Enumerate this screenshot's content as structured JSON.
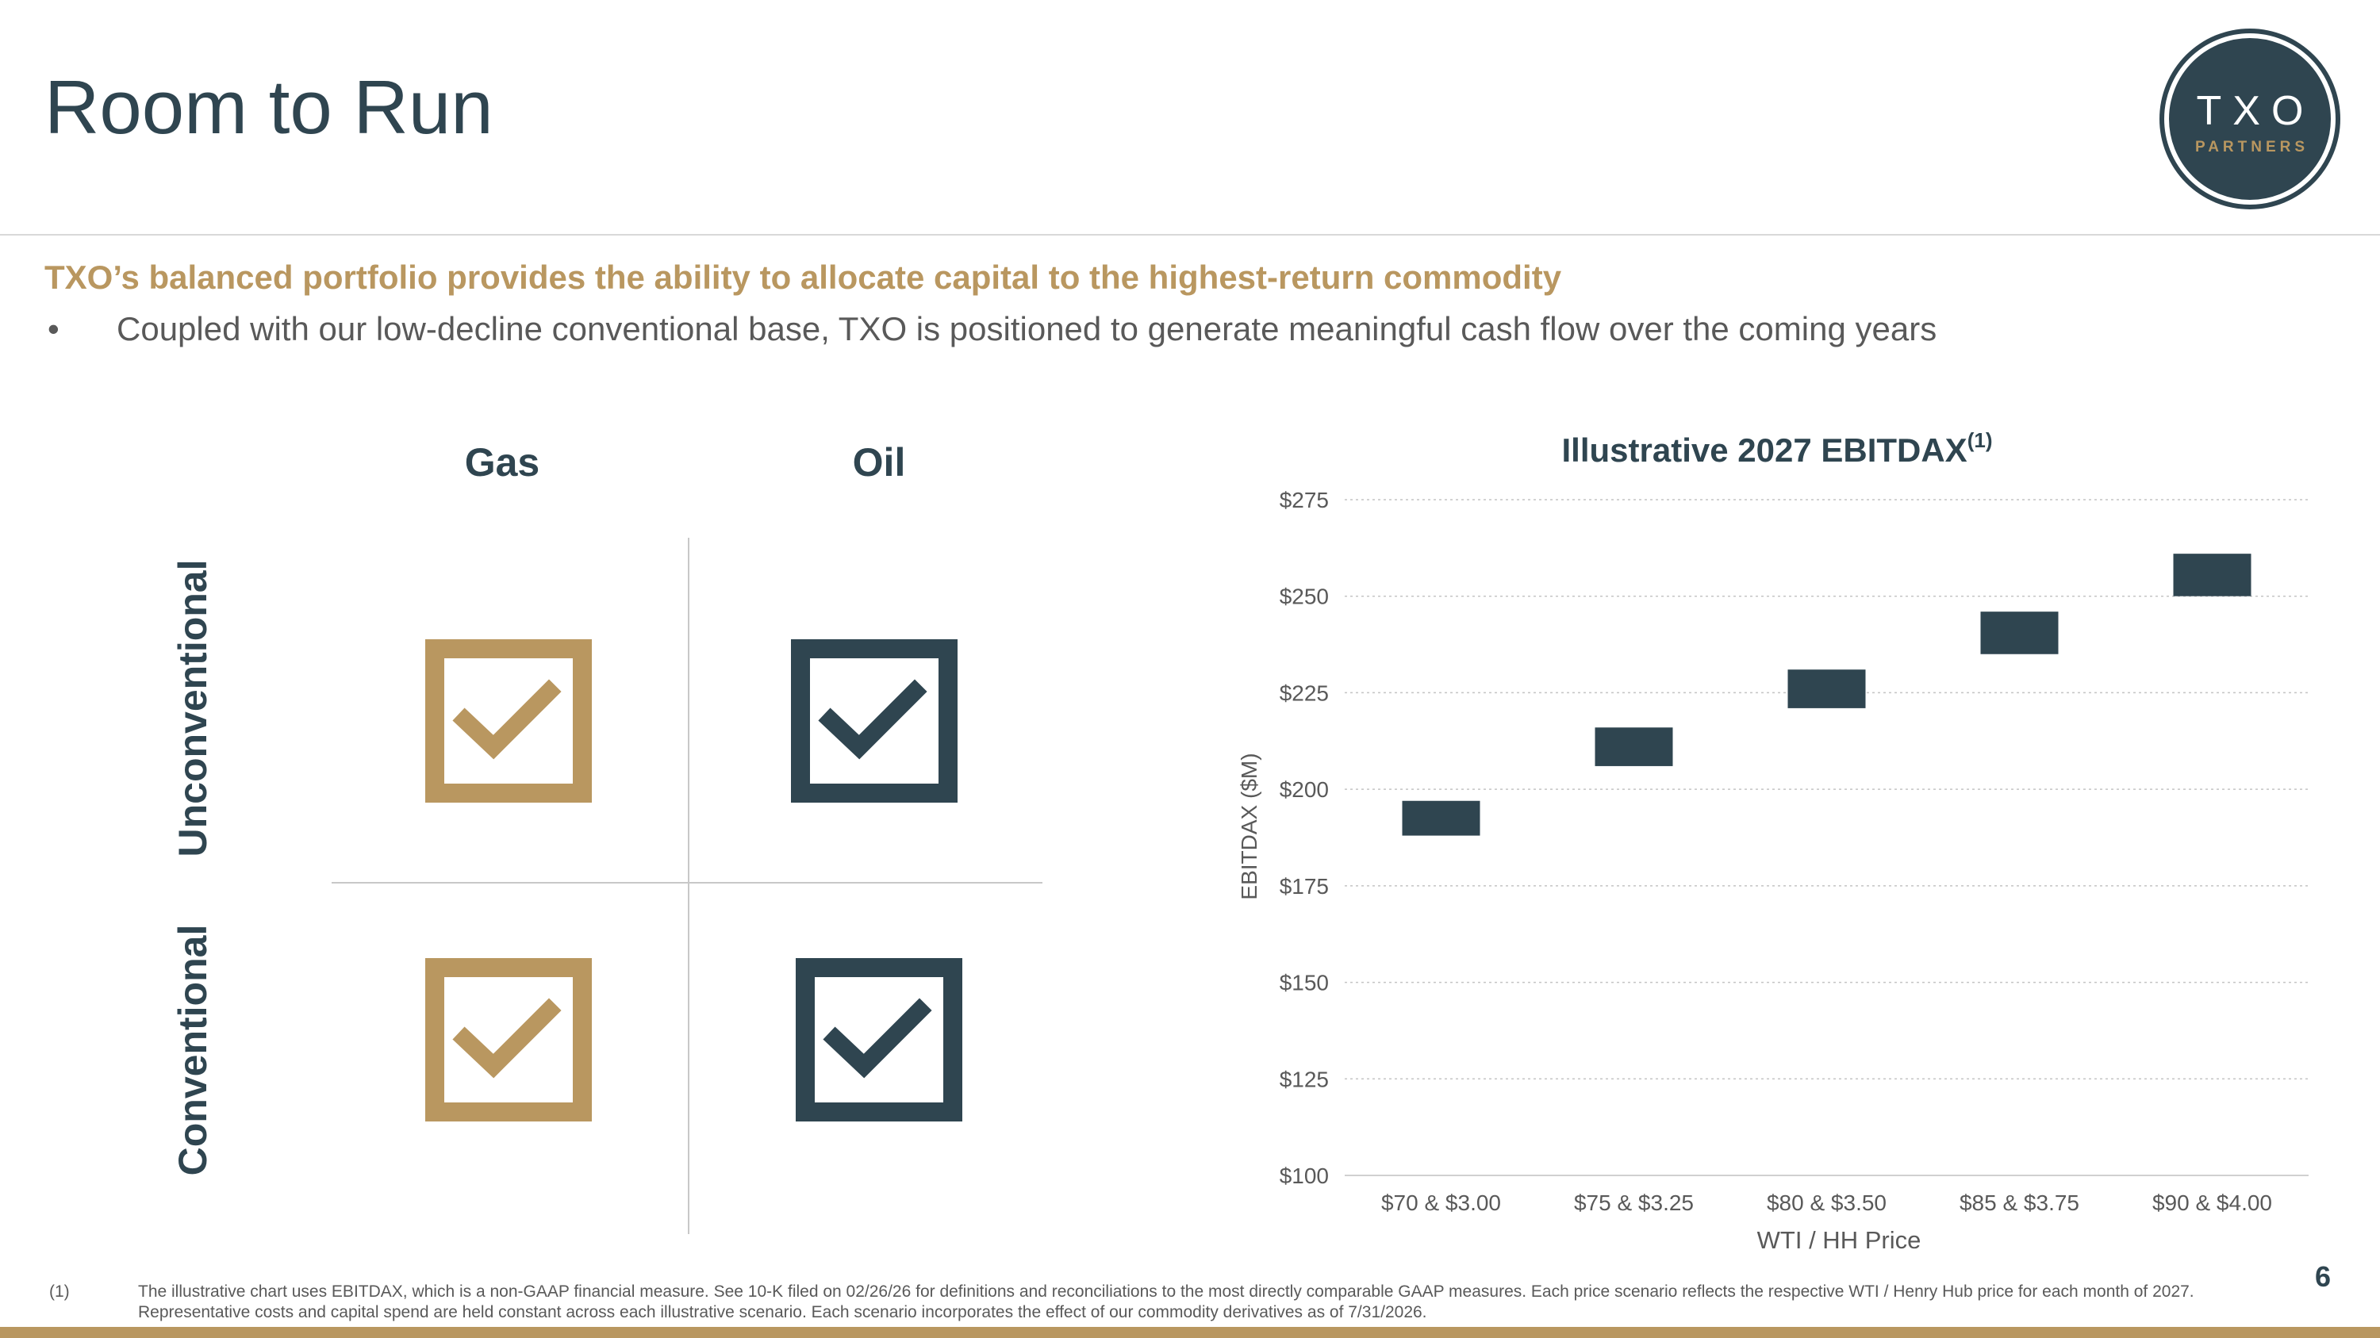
{
  "page": {
    "title": "Room to Run",
    "subtitle": "TXO’s balanced portfolio provides the ability to allocate capital to the highest-return commodity",
    "bullet_marker": "•",
    "bullet": "Coupled with our low-decline conventional base, TXO is positioned to generate meaningful cash flow over the coming years",
    "page_number": "6"
  },
  "logo": {
    "main": "TXO",
    "sub": "PARTNERS"
  },
  "colors": {
    "navy": "#2f4550",
    "gold": "#b99760",
    "gray_text": "#595959",
    "rule": "#d8d8d8"
  },
  "matrix": {
    "columns": [
      "Gas",
      "Oil"
    ],
    "rows": [
      "Unconventional",
      "Conventional"
    ],
    "cells": [
      {
        "row": "Unconventional",
        "column": "Gas",
        "icon": "check-box-icon",
        "color": "#b99760"
      },
      {
        "row": "Unconventional",
        "column": "Oil",
        "icon": "check-box-icon",
        "color": "#2f4550"
      },
      {
        "row": "Conventional",
        "column": "Gas",
        "icon": "check-box-icon",
        "color": "#b99760"
      },
      {
        "row": "Conventional",
        "column": "Oil",
        "icon": "check-box-icon",
        "color": "#2f4550"
      }
    ]
  },
  "chart_data": {
    "type": "bar",
    "subtype": "floating-range",
    "title": "Illustrative 2027 EBITDAX",
    "title_superscript": "(1)",
    "xlabel": "WTI / HH Price",
    "ylabel": "EBITDAX ($M)",
    "ylim": [
      100,
      275
    ],
    "yticks": [
      100,
      125,
      150,
      175,
      200,
      225,
      250,
      275
    ],
    "ytick_labels": [
      "$100",
      "$125",
      "$150",
      "$175",
      "$200",
      "$225",
      "$250",
      "$275"
    ],
    "grid": true,
    "legend": "none",
    "categories": [
      "$70 & $3.00",
      "$75 & $3.25",
      "$80 & $3.50",
      "$85 & $3.75",
      "$90 & $4.00"
    ],
    "ranges": [
      {
        "low": 188,
        "high": 197
      },
      {
        "low": 206,
        "high": 216
      },
      {
        "low": 221,
        "high": 231
      },
      {
        "low": 235,
        "high": 246
      },
      {
        "low": 250,
        "high": 261
      }
    ],
    "bar_color": "#2f4550"
  },
  "footnote": {
    "mark": "(1)",
    "text": "The illustrative chart uses EBITDAX, which is a non-GAAP financial measure. See 10-K filed on 02/26/26 for definitions and reconciliations to the most directly comparable GAAP measures. Each price scenario reflects the respective WTI / Henry Hub price for each month of 2027. Representative costs and capital spend are held constant across each illustrative scenario. Each scenario incorporates the effect of our commodity derivatives as of 7/31/2026."
  }
}
